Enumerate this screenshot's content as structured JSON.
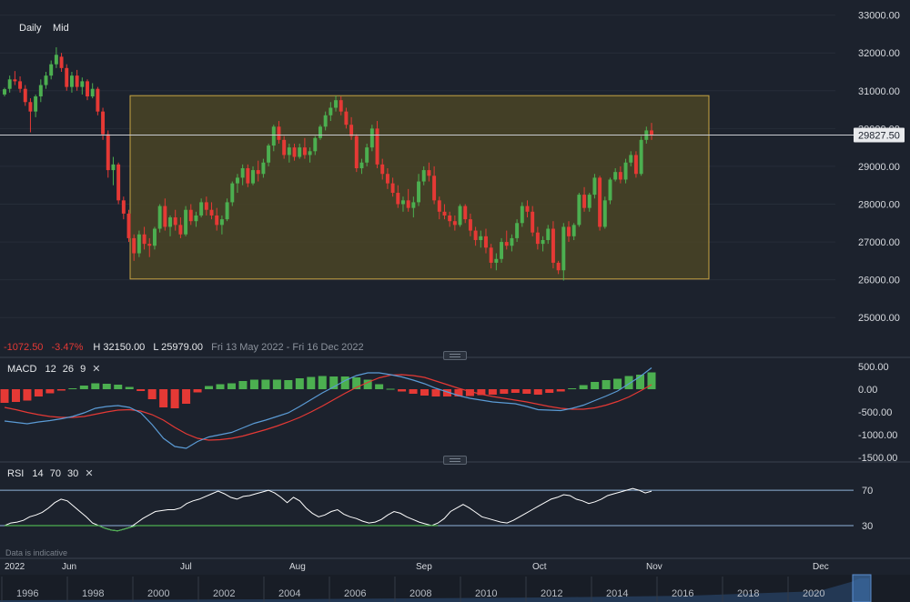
{
  "toolbar": {
    "daily_label": "Daily",
    "mid_label": "Mid"
  },
  "summary": {
    "change": "-1072.50",
    "change_pct": "-3.47%",
    "high": "H 32150.00",
    "low": "L 25979.00",
    "range": "Fri 13 May 2022 - Fri 16 Dec 2022"
  },
  "macd": {
    "label": "MACD",
    "p1": "12",
    "p2": "26",
    "p3": "9"
  },
  "rsi": {
    "label": "RSI",
    "p1": "14",
    "p2": "70",
    "p3": "30"
  },
  "disclaimer": "Data is indicative",
  "current_price_label": "29827.50",
  "colors": {
    "background": "#1c222d",
    "up": "#4caf50",
    "down": "#e53935",
    "zone_fill": "#4a4426",
    "zone_border": "#c8a443",
    "macd_line": "#5b9bd5",
    "signal_line": "#e53935",
    "rsi_line": "#ffffff",
    "rsi_level": "#8fb2d9",
    "rsi_oversold": "#4caf50"
  },
  "chart_data": {
    "type": "candlestick",
    "price_axis": {
      "ticks": [
        "33000.00",
        "32000.00",
        "31000.00",
        "30000.00",
        "29000.00",
        "28000.00",
        "27000.00",
        "26000.00",
        "25000.00"
      ],
      "range": [
        24500,
        33400
      ]
    },
    "x_axis_ticks": [
      "2022",
      "Jun",
      "Jul",
      "Aug",
      "Sep",
      "Oct",
      "Nov",
      "Dec"
    ],
    "zone": {
      "top": 30870,
      "bottom": 26020
    },
    "current_price": 29827.5,
    "candles": [
      [
        30900,
        31080,
        30850,
        31040
      ],
      [
        31050,
        31400,
        30950,
        31300
      ],
      [
        31300,
        31520,
        31150,
        31250
      ],
      [
        31250,
        31380,
        30950,
        31050
      ],
      [
        31050,
        31150,
        30600,
        30700
      ],
      [
        30700,
        30800,
        29900,
        30450
      ],
      [
        30450,
        30900,
        30300,
        30850
      ],
      [
        30850,
        31300,
        30700,
        31150
      ],
      [
        31150,
        31500,
        31050,
        31400
      ],
      [
        31400,
        31800,
        31300,
        31700
      ],
      [
        31700,
        32150,
        31600,
        31950
      ],
      [
        31900,
        32000,
        31500,
        31600
      ],
      [
        31600,
        31700,
        31000,
        31100
      ],
      [
        31100,
        31500,
        30950,
        31400
      ],
      [
        31400,
        31550,
        31000,
        31100
      ],
      [
        31100,
        31350,
        30900,
        31250
      ],
      [
        31250,
        31300,
        30750,
        30850
      ],
      [
        30850,
        31200,
        30800,
        31050
      ],
      [
        31050,
        31100,
        30350,
        30450
      ],
      [
        30450,
        30550,
        29700,
        29850
      ],
      [
        29850,
        29950,
        28700,
        28900
      ],
      [
        28900,
        29250,
        28500,
        29050
      ],
      [
        29050,
        29100,
        28000,
        28100
      ],
      [
        28100,
        28200,
        27600,
        27750
      ],
      [
        27750,
        27850,
        27000,
        27100
      ],
      [
        27100,
        27200,
        26500,
        26700
      ],
      [
        26700,
        27300,
        26600,
        27200
      ],
      [
        27200,
        27400,
        26800,
        26950
      ],
      [
        26950,
        27100,
        26600,
        26900
      ],
      [
        26900,
        27400,
        26800,
        27350
      ],
      [
        27350,
        28000,
        27250,
        27950
      ],
      [
        27950,
        28150,
        27300,
        27400
      ],
      [
        27400,
        27700,
        27150,
        27650
      ],
      [
        27650,
        27850,
        27300,
        27450
      ],
      [
        27450,
        27650,
        27100,
        27200
      ],
      [
        27200,
        27950,
        27150,
        27850
      ],
      [
        27850,
        28000,
        27450,
        27550
      ],
      [
        27550,
        27800,
        27400,
        27700
      ],
      [
        27700,
        28150,
        27650,
        28050
      ],
      [
        28050,
        28200,
        27700,
        27850
      ],
      [
        27850,
        28050,
        27600,
        27700
      ],
      [
        27700,
        27900,
        27300,
        27450
      ],
      [
        27450,
        27700,
        27200,
        27600
      ],
      [
        27600,
        28150,
        27550,
        28050
      ],
      [
        28050,
        28600,
        27950,
        28550
      ],
      [
        28550,
        28800,
        28300,
        28700
      ],
      [
        28700,
        29050,
        28500,
        28950
      ],
      [
        28950,
        29050,
        28450,
        28550
      ],
      [
        28550,
        29000,
        28500,
        28900
      ],
      [
        28900,
        29150,
        28600,
        28800
      ],
      [
        28800,
        29200,
        28700,
        29100
      ],
      [
        29100,
        29600,
        29000,
        29550
      ],
      [
        29550,
        30100,
        29400,
        30050
      ],
      [
        30050,
        30200,
        29600,
        29700
      ],
      [
        29700,
        29800,
        29200,
        29300
      ],
      [
        29300,
        29600,
        29100,
        29500
      ],
      [
        29500,
        29600,
        29150,
        29250
      ],
      [
        29250,
        29600,
        29200,
        29500
      ],
      [
        29500,
        29750,
        29200,
        29300
      ],
      [
        29300,
        29500,
        29100,
        29400
      ],
      [
        29400,
        29800,
        29300,
        29750
      ],
      [
        29750,
        30100,
        29700,
        30050
      ],
      [
        30050,
        30450,
        29950,
        30350
      ],
      [
        30350,
        30700,
        30200,
        30550
      ],
      [
        30550,
        30870,
        30450,
        30750
      ],
      [
        30750,
        30850,
        30350,
        30450
      ],
      [
        30450,
        30550,
        30000,
        30100
      ],
      [
        30100,
        30300,
        29700,
        29800
      ],
      [
        29800,
        29850,
        28850,
        28950
      ],
      [
        28950,
        29200,
        28800,
        29100
      ],
      [
        29100,
        29600,
        29000,
        29500
      ],
      [
        29500,
        30100,
        29400,
        30000
      ],
      [
        30000,
        30200,
        28950,
        29050
      ],
      [
        29050,
        29200,
        28650,
        28800
      ],
      [
        28800,
        28950,
        28400,
        28550
      ],
      [
        28550,
        28700,
        28200,
        28300
      ],
      [
        28300,
        28500,
        27900,
        28000
      ],
      [
        28000,
        28200,
        27800,
        28100
      ],
      [
        28100,
        28400,
        27800,
        27900
      ],
      [
        27900,
        28200,
        27650,
        28050
      ],
      [
        28050,
        28800,
        27950,
        28600
      ],
      [
        28600,
        29000,
        28500,
        28900
      ],
      [
        28900,
        29100,
        28600,
        28750
      ],
      [
        28750,
        29000,
        28000,
        28100
      ],
      [
        28100,
        28200,
        27600,
        27800
      ],
      [
        27800,
        28000,
        27600,
        27700
      ],
      [
        27700,
        27800,
        27400,
        27550
      ],
      [
        27550,
        27700,
        27300,
        27450
      ],
      [
        27450,
        28000,
        27400,
        27950
      ],
      [
        27950,
        28000,
        27500,
        27600
      ],
      [
        27600,
        27750,
        27150,
        27300
      ],
      [
        27300,
        27400,
        26900,
        27050
      ],
      [
        27050,
        27300,
        26850,
        27150
      ],
      [
        27150,
        27350,
        26700,
        26850
      ],
      [
        26850,
        26950,
        26300,
        26450
      ],
      [
        26450,
        26700,
        26250,
        26550
      ],
      [
        26550,
        27100,
        26450,
        27000
      ],
      [
        27000,
        27300,
        26800,
        26900
      ],
      [
        26900,
        27200,
        26750,
        27100
      ],
      [
        27100,
        27600,
        27000,
        27500
      ],
      [
        27500,
        28050,
        27400,
        27950
      ],
      [
        27950,
        28100,
        27650,
        27800
      ],
      [
        27800,
        27950,
        27150,
        27250
      ],
      [
        27250,
        27400,
        26800,
        26950
      ],
      [
        26950,
        27150,
        26750,
        27050
      ],
      [
        27050,
        27450,
        26950,
        27350
      ],
      [
        27350,
        27550,
        26300,
        26450
      ],
      [
        26450,
        26500,
        26150,
        26250
      ],
      [
        26250,
        27500,
        25979,
        27400
      ],
      [
        27400,
        27550,
        27000,
        27150
      ],
      [
        27150,
        27500,
        27050,
        27450
      ],
      [
        27450,
        28300,
        27400,
        28250
      ],
      [
        28250,
        28450,
        27800,
        27900
      ],
      [
        27900,
        28300,
        27800,
        28250
      ],
      [
        28250,
        28800,
        28150,
        28700
      ],
      [
        28700,
        28750,
        27300,
        27400
      ],
      [
        27400,
        28200,
        27350,
        28100
      ],
      [
        28100,
        28700,
        28000,
        28650
      ],
      [
        28650,
        28950,
        28600,
        28850
      ],
      [
        28850,
        29000,
        28550,
        28650
      ],
      [
        28650,
        29200,
        28550,
        29100
      ],
      [
        29100,
        29400,
        29000,
        29300
      ],
      [
        29300,
        29400,
        28700,
        28800
      ],
      [
        28800,
        29800,
        28750,
        29700
      ],
      [
        29700,
        30050,
        29600,
        29950
      ],
      [
        29950,
        30150,
        29700,
        29827.5
      ]
    ],
    "macd": {
      "params": [
        12,
        26,
        9
      ],
      "ticks": [
        "500.00",
        "0.00",
        "-500.00",
        "-1000.00",
        "-1500.00"
      ],
      "range": [
        -1600,
        700
      ],
      "macd_line": [
        -700,
        -730,
        -760,
        -720,
        -690,
        -650,
        -600,
        -520,
        -420,
        -380,
        -360,
        -400,
        -520,
        -780,
        -1080,
        -1260,
        -1300,
        -1150,
        -1050,
        -1000,
        -950,
        -850,
        -750,
        -680,
        -600,
        -520,
        -380,
        -230,
        -80,
        50,
        190,
        300,
        360,
        360,
        320,
        270,
        200,
        120,
        20,
        -60,
        -140,
        -200,
        -240,
        -280,
        -300,
        -320,
        -380,
        -450,
        -460,
        -470,
        -420,
        -350,
        -250,
        -150,
        -40,
        120,
        280,
        470
      ],
      "signal_line": [
        -400,
        -450,
        -510,
        -560,
        -600,
        -620,
        -620,
        -600,
        -550,
        -500,
        -460,
        -450,
        -480,
        -560,
        -680,
        -840,
        -980,
        -1080,
        -1120,
        -1110,
        -1080,
        -1030,
        -960,
        -890,
        -810,
        -720,
        -620,
        -500,
        -370,
        -230,
        -90,
        40,
        150,
        250,
        310,
        320,
        300,
        260,
        180,
        100,
        20,
        -50,
        -110,
        -160,
        -200,
        -240,
        -280,
        -330,
        -380,
        -420,
        -440,
        -440,
        -410,
        -350,
        -270,
        -170,
        -40,
        100
      ],
      "histogram": [
        -300,
        -280,
        -250,
        -160,
        -90,
        -30,
        20,
        80,
        130,
        120,
        100,
        50,
        -40,
        -220,
        -400,
        -420,
        -320,
        -70,
        70,
        110,
        130,
        180,
        210,
        210,
        210,
        200,
        240,
        270,
        290,
        280,
        280,
        260,
        210,
        110,
        10,
        -50,
        -100,
        -140,
        -160,
        -160,
        -160,
        -150,
        -130,
        -120,
        -100,
        -80,
        -100,
        -120,
        -80,
        -50,
        20,
        90,
        160,
        200,
        230,
        290,
        320,
        370
      ]
    },
    "rsi": {
      "params": [
        14,
        70,
        30
      ],
      "ticks": [
        "70",
        "30"
      ],
      "levels": [
        70,
        30
      ],
      "range": [
        -5,
        100
      ],
      "values": [
        30,
        33,
        34,
        36,
        40,
        42,
        45,
        50,
        56,
        60,
        58,
        52,
        46,
        40,
        33,
        30,
        27,
        25,
        24,
        26,
        28,
        33,
        38,
        42,
        46,
        47,
        48,
        48,
        50,
        55,
        58,
        60,
        63,
        66,
        69,
        66,
        62,
        60,
        63,
        64,
        66,
        68,
        70,
        67,
        62,
        56,
        62,
        58,
        50,
        44,
        40,
        42,
        46,
        48,
        43,
        40,
        38,
        35,
        33,
        34,
        37,
        42,
        46,
        44,
        40,
        37,
        34,
        32,
        30,
        33,
        38,
        46,
        50,
        54,
        50,
        45,
        40,
        38,
        36,
        34,
        33,
        36,
        40,
        44,
        48,
        52,
        56,
        60,
        62,
        65,
        64,
        60,
        58,
        55,
        57,
        60,
        64,
        66,
        68,
        70,
        72,
        70,
        67,
        69
      ]
    }
  }
}
